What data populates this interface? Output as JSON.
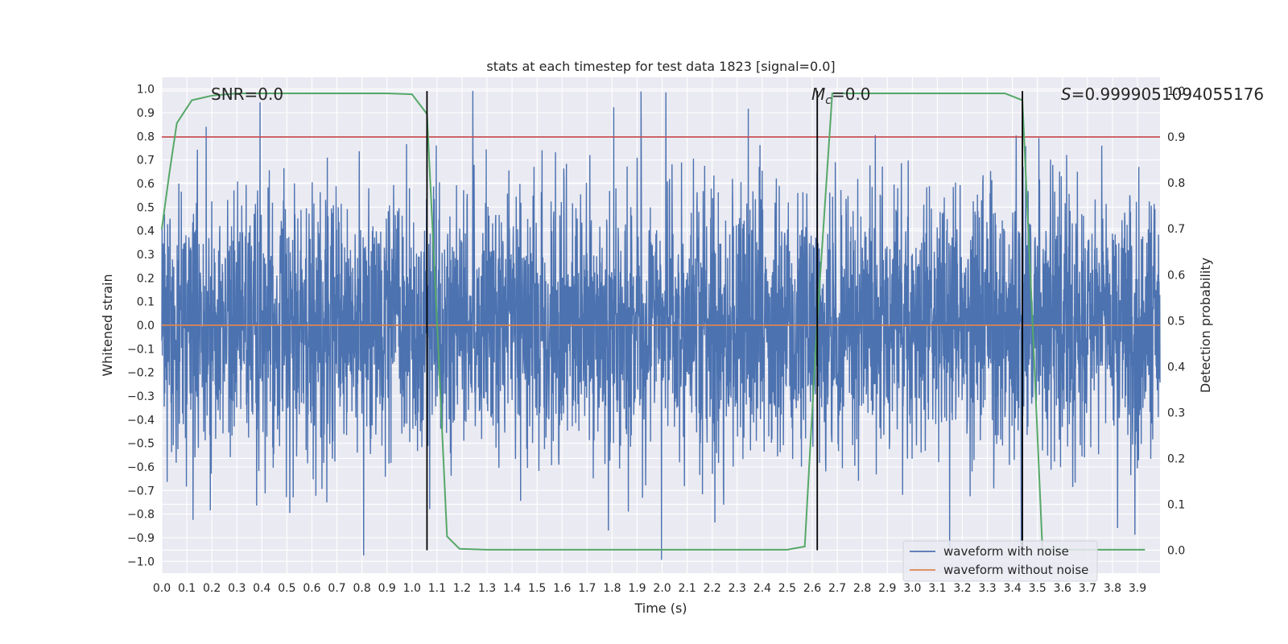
{
  "chart_data": {
    "type": "line",
    "title": "stats at each timestep for test data 1823 [signal=0.0]",
    "xlabel": "Time (s)",
    "ylabel": "Whitened strain",
    "ylabel_right": "Detection probability",
    "xlim": [
      0.0,
      3.99
    ],
    "ylim": [
      -1.05,
      1.05
    ],
    "ylim_right": [
      -0.05,
      1.03
    ],
    "x_ticks": [
      "0.0",
      "0.1",
      "0.2",
      "0.3",
      "0.4",
      "0.5",
      "0.6",
      "0.7",
      "0.8",
      "0.9",
      "1.0",
      "1.1",
      "1.2",
      "1.3",
      "1.4",
      "1.5",
      "1.6",
      "1.7",
      "1.8",
      "1.9",
      "2.0",
      "2.1",
      "2.2",
      "2.3",
      "2.4",
      "2.5",
      "2.6",
      "2.7",
      "2.8",
      "2.9",
      "3.0",
      "3.1",
      "3.2",
      "3.3",
      "3.4",
      "3.5",
      "3.6",
      "3.7",
      "3.8",
      "3.9"
    ],
    "y_ticks": [
      "1.0",
      "0.9",
      "0.8",
      "0.7",
      "0.6",
      "0.5",
      "0.4",
      "0.3",
      "0.2",
      "0.1",
      "0.0",
      "−0.1",
      "−0.2",
      "−0.3",
      "−0.4",
      "−0.5",
      "−0.6",
      "−0.7",
      "−0.8",
      "−0.9",
      "−1.0"
    ],
    "y_ticks_right": [
      "1.0",
      "0.9",
      "0.8",
      "0.7",
      "0.6",
      "0.5",
      "0.4",
      "0.3",
      "0.2",
      "0.1",
      "0.0"
    ],
    "annotations": {
      "snr": "SNR=0.0",
      "mc_symbol": "M",
      "mc_subscript": "c",
      "mc_value": "=0.0",
      "s_symbol": "S",
      "s_value": "=0.9999051094055176"
    },
    "threshold_probability": 0.9,
    "vertical_markers": [
      1.06,
      2.62,
      3.44
    ],
    "series": [
      {
        "name": "waveform with noise",
        "color": "#4c72b0",
        "kind": "noise",
        "amplitude_std": 0.28,
        "samples": 4096
      },
      {
        "name": "waveform without noise",
        "color": "#dd8452",
        "kind": "flat",
        "value": 0.0
      },
      {
        "name": "detection probability",
        "color": "#55a868",
        "axis": "right",
        "x": [
          0.0,
          0.03,
          0.06,
          0.12,
          0.2,
          0.3,
          0.5,
          0.7,
          0.9,
          1.0,
          1.06,
          1.1,
          1.14,
          1.19,
          1.3,
          1.5,
          2.0,
          2.5,
          2.57,
          2.62,
          2.68,
          2.8,
          3.0,
          3.2,
          3.37,
          3.44,
          3.48,
          3.52,
          3.6,
          3.8,
          3.93
        ],
        "y": [
          0.7,
          0.82,
          0.93,
          0.98,
          0.99,
          0.995,
          0.995,
          0.995,
          0.995,
          0.993,
          0.95,
          0.5,
          0.03,
          0.003,
          0.001,
          0.001,
          0.001,
          0.001,
          0.008,
          0.5,
          0.995,
          0.995,
          0.995,
          0.995,
          0.995,
          0.98,
          0.5,
          0.003,
          0.001,
          0.001,
          0.001
        ]
      },
      {
        "name": "threshold",
        "color": "#c44e52",
        "axis": "right",
        "kind": "hline",
        "value": 0.9
      }
    ],
    "legend": {
      "placement": "lower-right",
      "entries": [
        {
          "label": "waveform with noise",
          "color": "#4c72b0"
        },
        {
          "label": "waveform without noise",
          "color": "#dd8452"
        }
      ]
    },
    "grid": true
  }
}
